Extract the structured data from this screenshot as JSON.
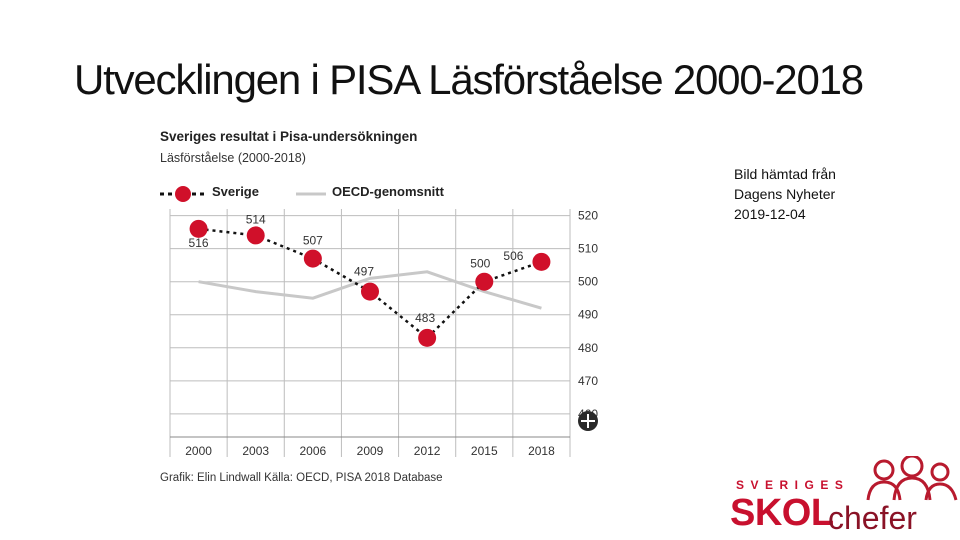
{
  "slide": {
    "title": "Utvecklingen i PISA Läsförståelse 2000-2018",
    "note_lines": [
      "Bild hämtad från",
      "Dagens Nyheter",
      "2019-12-04"
    ]
  },
  "logo": {
    "top": "SVERIGES",
    "main": "SKOL",
    "sub": "chefer",
    "color": "#c8102e"
  },
  "chart_data": {
    "type": "line",
    "title": "Sveriges resultat i Pisa-undersökningen",
    "subtitle": "Läsförståelse (2000-2018)",
    "credit": "Grafik: Elin Lindwall Källa: OECD, PISA 2018 Database",
    "x": [
      "2000",
      "2003",
      "2006",
      "2009",
      "2012",
      "2015",
      "2018"
    ],
    "ylim": [
      453,
      522
    ],
    "yticks": [
      460,
      470,
      480,
      490,
      500,
      510,
      520
    ],
    "grid": true,
    "legend": "top-left",
    "series": [
      {
        "name": "Sverige",
        "values": [
          516,
          514,
          507,
          497,
          483,
          500,
          506
        ],
        "color": "#d0102a",
        "style": "dotted-with-markers"
      },
      {
        "name": "OECD-genomsnitt",
        "values": [
          500,
          497,
          495,
          501,
          503,
          497,
          492
        ],
        "color": "#c8c8c8",
        "style": "solid"
      }
    ]
  }
}
